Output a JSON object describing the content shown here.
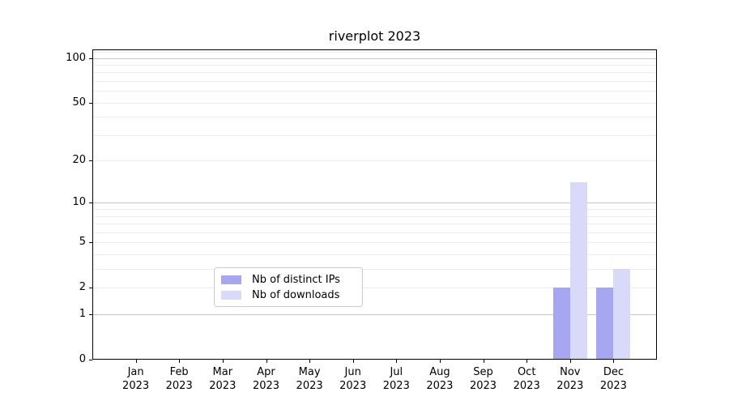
{
  "chart_data": {
    "type": "bar",
    "title": "riverplot 2023",
    "categories": [
      "Jan 2023",
      "Feb 2023",
      "Mar 2023",
      "Apr 2023",
      "May 2023",
      "Jun 2023",
      "Jul 2023",
      "Aug 2023",
      "Sep 2023",
      "Oct 2023",
      "Nov 2023",
      "Dec 2023"
    ],
    "series": [
      {
        "name": "Nb of distinct IPs",
        "color": "#a6a6f2",
        "values": [
          0,
          0,
          0,
          0,
          0,
          0,
          0,
          0,
          0,
          0,
          2,
          2
        ]
      },
      {
        "name": "Nb of downloads",
        "color": "#d9d9f9",
        "values": [
          0,
          0,
          0,
          0,
          0,
          0,
          0,
          0,
          0,
          0,
          14,
          3
        ]
      }
    ],
    "xlabel": "",
    "ylabel": "",
    "yscale": "log1p",
    "ylim": [
      0,
      114
    ],
    "ytick_values": [
      0,
      1,
      2,
      5,
      10,
      20,
      50,
      100
    ],
    "ytick_labels": [
      "0",
      "1",
      "2",
      "5",
      "10",
      "20",
      "50",
      "100"
    ],
    "ygrid_major": [
      1,
      10,
      100
    ],
    "ygrid_minor": [
      2,
      3,
      4,
      5,
      6,
      7,
      8,
      9,
      20,
      30,
      40,
      50,
      60,
      70,
      80,
      90,
      110
    ],
    "grid": "horizontal",
    "legend_position": "lower-center-inside"
  },
  "colors": {
    "background": "#ffffff",
    "spine": "#000000",
    "grid_major": "#c6c6c6",
    "grid_minor": "#ececec",
    "distinct_ips": "#a6a6f2",
    "downloads": "#d9d9f9"
  }
}
